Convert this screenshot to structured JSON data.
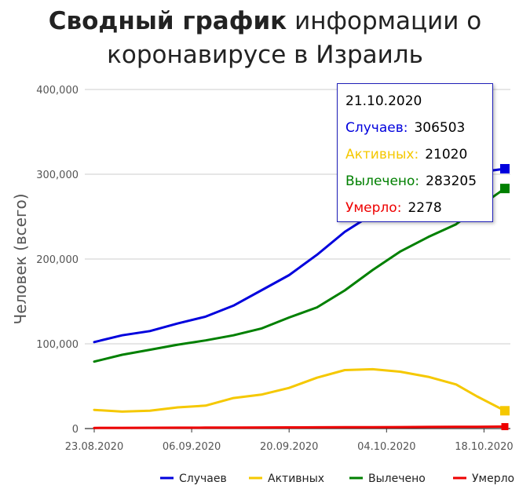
{
  "title": {
    "bold": "Сводный график",
    "rest": "информации о",
    "line2": "коронавирусе в Израиль"
  },
  "chart_data": {
    "type": "line",
    "ylabel": "Человек (всего)",
    "xlabel": "",
    "ylim": [
      0,
      400000
    ],
    "y_ticks": [
      0,
      100000,
      200000,
      300000,
      400000
    ],
    "y_tick_labels": [
      "0",
      "100,000",
      "200,000",
      "300,000",
      "400,000"
    ],
    "x_ticks": [
      "2020-08-23",
      "2020-09-06",
      "2020-09-20",
      "2020-10-04",
      "2020-10-18"
    ],
    "x_tick_labels": [
      "23.08.2020",
      "06.09.2020",
      "20.09.2020",
      "04.10.2020",
      "18.10.2020"
    ],
    "x_range": [
      "2020-08-23",
      "2020-10-21"
    ],
    "grid": true,
    "legend_position": "bottom-right",
    "x": [
      "2020-08-23",
      "2020-08-27",
      "2020-08-31",
      "2020-09-04",
      "2020-09-08",
      "2020-09-12",
      "2020-09-16",
      "2020-09-20",
      "2020-09-24",
      "2020-09-28",
      "2020-10-02",
      "2020-10-06",
      "2020-10-10",
      "2020-10-14",
      "2020-10-17",
      "2020-10-21"
    ],
    "series": [
      {
        "name": "Случаев",
        "color": "#0000dd",
        "values": [
          102000,
          110000,
          115000,
          124000,
          132000,
          145000,
          163000,
          181000,
          205000,
          232000,
          253000,
          279000,
          292000,
          296000,
          302000,
          306503
        ]
      },
      {
        "name": "Активных",
        "color": "#f5c800",
        "values": [
          22000,
          20000,
          21000,
          25000,
          27000,
          36000,
          40000,
          48000,
          60000,
          69000,
          70000,
          67000,
          61000,
          52000,
          38000,
          21020
        ]
      },
      {
        "name": "Вылечено",
        "color": "#008000",
        "values": [
          79000,
          87000,
          93000,
          99000,
          104000,
          110000,
          118000,
          131000,
          143000,
          163000,
          187000,
          209000,
          226000,
          241000,
          260000,
          283205
        ]
      },
      {
        "name": "Умерло",
        "color": "#ee0000",
        "values": [
          700,
          800,
          900,
          1000,
          1100,
          1200,
          1300,
          1400,
          1500,
          1600,
          1700,
          1800,
          1900,
          2000,
          2100,
          2278
        ]
      }
    ]
  },
  "tooltip": {
    "date": "21.10.2020",
    "rows": [
      {
        "label": "Случаев:",
        "value": "306503",
        "color": "#0000dd"
      },
      {
        "label": "Активных:",
        "value": "21020",
        "color": "#f5c800"
      },
      {
        "label": "Вылечено:",
        "value": "283205",
        "color": "#008000"
      },
      {
        "label": "Умерло:",
        "value": "2278",
        "color": "#ee0000"
      }
    ]
  }
}
